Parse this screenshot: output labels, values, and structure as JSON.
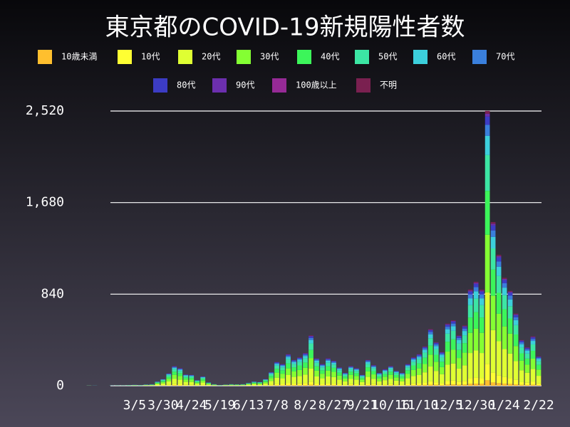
{
  "chart_data": {
    "type": "stacked_bar",
    "title": "東京都のCOVID-19新規陽性者数",
    "categories": [
      null,
      null,
      null,
      null,
      null,
      null,
      null,
      null,
      null,
      null,
      "3/5",
      null,
      null,
      null,
      null,
      "3/30",
      null,
      null,
      null,
      null,
      "4/24",
      null,
      null,
      null,
      null,
      "5/19",
      null,
      null,
      null,
      null,
      "6/13",
      null,
      null,
      null,
      null,
      "7/8",
      null,
      null,
      null,
      null,
      "8/2",
      null,
      null,
      null,
      null,
      "8/27",
      null,
      null,
      null,
      null,
      "9/21",
      null,
      null,
      null,
      null,
      "10/16",
      null,
      null,
      null,
      null,
      "11/10",
      null,
      null,
      null,
      null,
      "12/5",
      null,
      null,
      null,
      null,
      "12/30",
      null,
      null,
      null,
      null,
      "1/24",
      null,
      null,
      null,
      null,
      null,
      "2/22"
    ],
    "ylim": [
      0,
      2520
    ],
    "yticks": [
      0,
      840,
      {
        "value": 1680,
        "label": "1,680"
      },
      {
        "value": 2520,
        "label": "2,520"
      }
    ],
    "grid": true,
    "series": [
      {
        "name": "10歳未満",
        "color": "#ffbf2e",
        "values": [
          0,
          0,
          0,
          0,
          0,
          0,
          0,
          0,
          0,
          0,
          0,
          0,
          0,
          0,
          1,
          1,
          2,
          4,
          3,
          2,
          2,
          1,
          2,
          1,
          0,
          0,
          0,
          0,
          0,
          0,
          1,
          1,
          1,
          1,
          3,
          4,
          4,
          6,
          5,
          5,
          6,
          9,
          5,
          4,
          5,
          5,
          3,
          2,
          4,
          3,
          2,
          5,
          4,
          2,
          3,
          4,
          3,
          2,
          4,
          5,
          6,
          7,
          10,
          8,
          6,
          11,
          12,
          9,
          11,
          18,
          19,
          18,
          50,
          30,
          24,
          20,
          17,
          13,
          8,
          7,
          9,
          5
        ]
      },
      {
        "name": "10代",
        "color": "#ffff33",
        "values": [
          0,
          0,
          0,
          0,
          0,
          0,
          0,
          0,
          0,
          0,
          0,
          0,
          1,
          1,
          2,
          4,
          7,
          11,
          10,
          6,
          6,
          3,
          5,
          2,
          1,
          0,
          1,
          1,
          1,
          1,
          2,
          2,
          2,
          4,
          8,
          13,
          12,
          17,
          14,
          16,
          18,
          28,
          15,
          12,
          15,
          14,
          10,
          7,
          11,
          10,
          6,
          14,
          11,
          7,
          9,
          11,
          8,
          7,
          12,
          16,
          17,
          22,
          31,
          24,
          19,
          34,
          36,
          28,
          33,
          53,
          57,
          53,
          151,
          90,
          72,
          59,
          52,
          40,
          25,
          21,
          27,
          16
        ]
      },
      {
        "name": "20代",
        "color": "#dfff33",
        "values": [
          0,
          0,
          1,
          0,
          0,
          0,
          1,
          1,
          1,
          1,
          2,
          1,
          3,
          3,
          10,
          16,
          30,
          47,
          42,
          27,
          26,
          13,
          22,
          8,
          4,
          1,
          3,
          4,
          3,
          4,
          7,
          10,
          9,
          16,
          33,
          57,
          52,
          75,
          62,
          68,
          78,
          120,
          65,
          52,
          65,
          60,
          44,
          31,
          47,
          42,
          26,
          62,
          49,
          31,
          39,
          47,
          36,
          31,
          52,
          68,
          75,
          94,
          135,
          104,
          81,
          148,
          156,
          120,
          143,
          229,
          247,
          229,
          655,
          390,
          312,
          257,
          226,
          172,
          109,
          91,
          117,
          70
        ]
      },
      {
        "name": "30代",
        "color": "#84ff33",
        "values": [
          0,
          0,
          0,
          0,
          0,
          0,
          0,
          1,
          1,
          1,
          2,
          1,
          2,
          3,
          8,
          13,
          24,
          38,
          34,
          22,
          21,
          11,
          18,
          6,
          3,
          1,
          2,
          3,
          3,
          3,
          5,
          8,
          7,
          13,
          26,
          46,
          42,
          61,
          50,
          55,
          63,
          97,
          53,
          42,
          53,
          48,
          36,
          25,
          38,
          34,
          21,
          50,
          40,
          25,
          32,
          38,
          29,
          25,
          42,
          55,
          61,
          76,
          109,
          84,
          65,
          120,
          126,
          97,
          116,
          185,
          200,
          185,
          529,
          315,
          252,
          208,
          183,
          139,
          88,
          74,
          95,
          57
        ]
      },
      {
        "name": "40代",
        "color": "#3cf55a",
        "values": [
          0,
          0,
          0,
          0,
          0,
          0,
          0,
          0,
          0,
          1,
          1,
          1,
          2,
          2,
          6,
          10,
          18,
          29,
          26,
          17,
          16,
          8,
          14,
          5,
          2,
          1,
          2,
          2,
          2,
          2,
          4,
          6,
          6,
          10,
          20,
          35,
          32,
          46,
          38,
          42,
          48,
          74,
          40,
          32,
          40,
          37,
          27,
          19,
          29,
          26,
          16,
          38,
          30,
          19,
          24,
          29,
          22,
          19,
          32,
          42,
          46,
          58,
          83,
          64,
          50,
          91,
          96,
          74,
          88,
          141,
          152,
          141,
          403,
          240,
          192,
          158,
          139,
          106,
          67,
          56,
          72,
          43
        ]
      },
      {
        "name": "50代",
        "color": "#3ce6a4",
        "values": [
          0,
          0,
          0,
          0,
          0,
          0,
          0,
          0,
          0,
          1,
          1,
          1,
          1,
          2,
          5,
          8,
          15,
          23,
          21,
          14,
          13,
          7,
          11,
          4,
          2,
          1,
          1,
          2,
          2,
          2,
          3,
          5,
          5,
          8,
          16,
          29,
          26,
          38,
          31,
          34,
          39,
          60,
          33,
          26,
          33,
          30,
          22,
          16,
          23,
          21,
          13,
          31,
          25,
          16,
          20,
          23,
          18,
          16,
          26,
          34,
          38,
          47,
          68,
          52,
          40,
          74,
          78,
          60,
          72,
          114,
          124,
          114,
          328,
          195,
          156,
          129,
          113,
          86,
          55,
          46,
          59,
          35
        ]
      },
      {
        "name": "60代",
        "color": "#3ccfdc",
        "values": [
          0,
          0,
          1,
          1,
          0,
          0,
          1,
          1,
          1,
          1,
          1,
          1,
          1,
          1,
          3,
          4,
          8,
          13,
          11,
          7,
          7,
          4,
          6,
          2,
          1,
          1,
          1,
          1,
          1,
          1,
          2,
          3,
          2,
          4,
          9,
          15,
          14,
          20,
          17,
          18,
          21,
          32,
          18,
          14,
          18,
          16,
          12,
          8,
          13,
          11,
          7,
          17,
          13,
          8,
          11,
          13,
          10,
          8,
          14,
          18,
          20,
          25,
          36,
          28,
          22,
          40,
          42,
          32,
          39,
          62,
          67,
          62,
          176,
          105,
          84,
          69,
          61,
          46,
          29,
          25,
          32,
          19
        ]
      },
      {
        "name": "70代",
        "color": "#3a7fdc",
        "values": [
          0,
          0,
          0,
          0,
          0,
          0,
          1,
          1,
          1,
          1,
          1,
          1,
          1,
          1,
          2,
          2,
          5,
          7,
          6,
          4,
          4,
          2,
          3,
          1,
          1,
          0,
          0,
          1,
          0,
          1,
          1,
          2,
          1,
          2,
          5,
          9,
          8,
          12,
          10,
          10,
          12,
          18,
          10,
          8,
          10,
          9,
          7,
          5,
          7,
          6,
          4,
          10,
          8,
          5,
          6,
          7,
          6,
          5,
          8,
          10,
          12,
          14,
          21,
          16,
          12,
          23,
          24,
          18,
          22,
          35,
          38,
          35,
          101,
          60,
          48,
          40,
          35,
          26,
          17,
          14,
          18,
          11
        ]
      },
      {
        "name": "80代",
        "color": "#3c3cc4",
        "values": [
          0,
          0,
          0,
          0,
          0,
          0,
          0,
          0,
          0,
          0,
          1,
          0,
          1,
          1,
          1,
          2,
          3,
          5,
          5,
          3,
          3,
          2,
          3,
          1,
          0,
          0,
          0,
          0,
          0,
          0,
          1,
          1,
          1,
          2,
          4,
          7,
          6,
          9,
          7,
          8,
          9,
          14,
          8,
          6,
          8,
          7,
          5,
          4,
          5,
          5,
          3,
          7,
          6,
          4,
          5,
          5,
          4,
          4,
          6,
          8,
          9,
          11,
          16,
          12,
          9,
          17,
          18,
          14,
          17,
          26,
          29,
          26,
          76,
          45,
          36,
          30,
          26,
          20,
          13,
          11,
          14,
          8
        ]
      },
      {
        "name": "90代",
        "color": "#6c2fae",
        "values": [
          0,
          0,
          0,
          0,
          0,
          0,
          0,
          0,
          0,
          0,
          0,
          0,
          0,
          0,
          0,
          1,
          1,
          2,
          2,
          1,
          1,
          0,
          1,
          0,
          0,
          0,
          0,
          0,
          0,
          0,
          0,
          0,
          0,
          1,
          1,
          2,
          2,
          3,
          2,
          3,
          3,
          5,
          3,
          2,
          3,
          2,
          2,
          1,
          2,
          2,
          1,
          2,
          2,
          1,
          2,
          2,
          1,
          1,
          2,
          3,
          3,
          4,
          5,
          4,
          3,
          6,
          6,
          5,
          6,
          9,
          10,
          9,
          25,
          15,
          12,
          10,
          9,
          7,
          4,
          4,
          5,
          3
        ]
      },
      {
        "name": "100歳以上",
        "color": "#962a96",
        "values": [
          0,
          0,
          0,
          0,
          0,
          0,
          0,
          0,
          0,
          0,
          0,
          0,
          0,
          0,
          0,
          0,
          0,
          0,
          0,
          0,
          0,
          0,
          0,
          0,
          0,
          0,
          0,
          0,
          0,
          0,
          0,
          0,
          0,
          0,
          0,
          0,
          0,
          0,
          0,
          0,
          0,
          0,
          0,
          0,
          0,
          0,
          0,
          0,
          0,
          0,
          0,
          0,
          0,
          0,
          0,
          0,
          0,
          0,
          0,
          0,
          0,
          0,
          0,
          0,
          0,
          0,
          0,
          0,
          0,
          1,
          1,
          0,
          2,
          1,
          1,
          0,
          0,
          0,
          0,
          0,
          0,
          0
        ]
      },
      {
        "name": "不明",
        "color": "#7a2050",
        "values": [
          0,
          0,
          0,
          0,
          0,
          0,
          0,
          0,
          0,
          0,
          0,
          0,
          0,
          0,
          0,
          1,
          1,
          2,
          2,
          1,
          1,
          0,
          1,
          0,
          0,
          0,
          0,
          0,
          0,
          0,
          0,
          0,
          0,
          1,
          1,
          2,
          2,
          3,
          2,
          3,
          3,
          5,
          3,
          2,
          3,
          2,
          2,
          1,
          2,
          2,
          1,
          2,
          2,
          1,
          2,
          2,
          1,
          1,
          2,
          3,
          3,
          4,
          5,
          4,
          3,
          6,
          6,
          5,
          6,
          9,
          10,
          9,
          25,
          15,
          12,
          10,
          9,
          7,
          4,
          4,
          5,
          3
        ]
      }
    ]
  }
}
